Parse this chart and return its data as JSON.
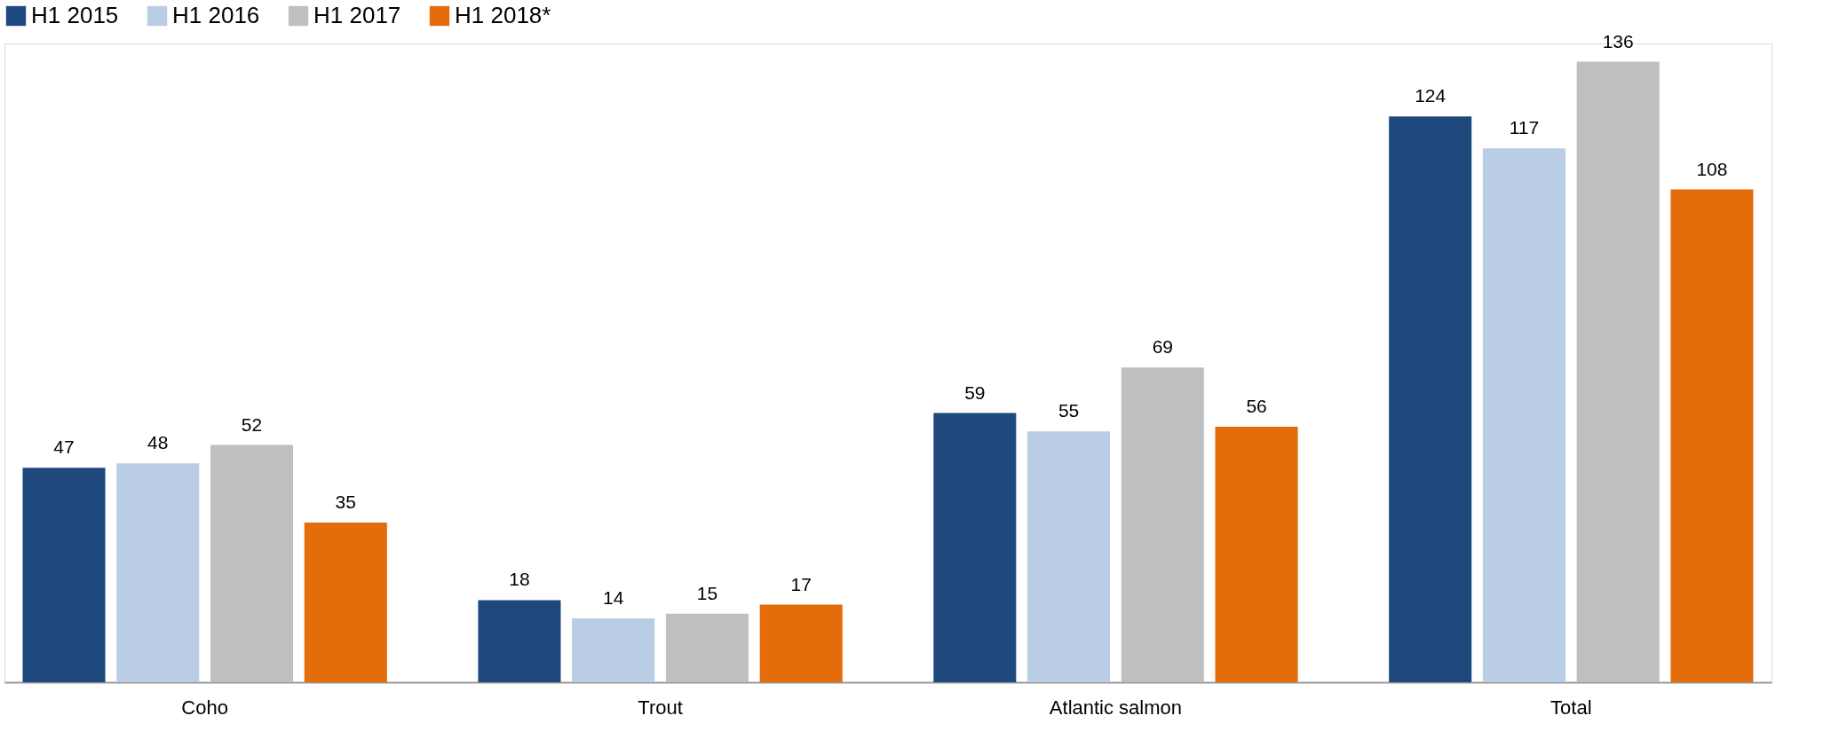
{
  "chart_data": {
    "type": "bar",
    "categories": [
      "Coho",
      "Trout",
      "Atlantic salmon",
      "Total"
    ],
    "series": [
      {
        "name": "H1 2015",
        "color": "#1f497d",
        "values": [
          47,
          18,
          59,
          124
        ]
      },
      {
        "name": "H1 2016",
        "color": "#b9cde5",
        "values": [
          48,
          14,
          55,
          117
        ]
      },
      {
        "name": "H1 2017",
        "color": "#bfbfbf",
        "values": [
          52,
          15,
          69,
          136
        ]
      },
      {
        "name": "H1 2018*",
        "color": "#e46c0a",
        "values": [
          35,
          17,
          56,
          108
        ]
      }
    ],
    "data_labels": true,
    "legend": "top",
    "grid": false,
    "tick_labels": "x"
  }
}
